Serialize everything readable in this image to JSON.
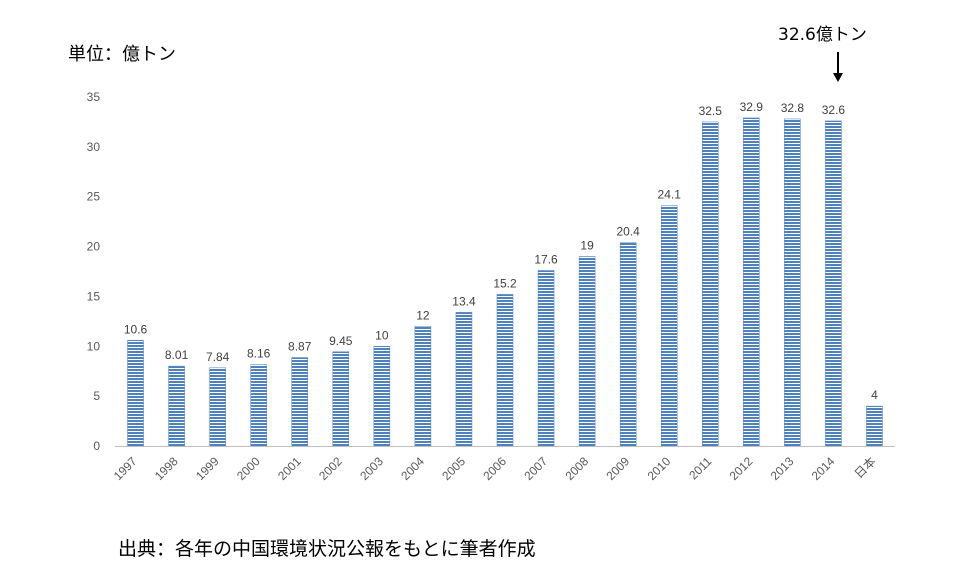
{
  "header": {
    "unit_label": "単位：億トン"
  },
  "annotation": {
    "label": "32.6億トン"
  },
  "footer": {
    "source_note": "出典：各年の中国環境状況公報をもとに筆者作成"
  },
  "chart_data": {
    "type": "bar",
    "categories": [
      "1997",
      "1998",
      "1999",
      "2000",
      "2001",
      "2002",
      "2003",
      "2004",
      "2005",
      "2006",
      "2007",
      "2008",
      "2009",
      "2010",
      "2011",
      "2012",
      "2013",
      "2014",
      "日本"
    ],
    "values": [
      10.6,
      8.01,
      7.84,
      8.16,
      8.87,
      9.45,
      10,
      12,
      13.4,
      15.2,
      17.6,
      19,
      20.4,
      24.1,
      32.5,
      32.9,
      32.8,
      32.6,
      4
    ],
    "data_labels": [
      "10.6",
      "8.01",
      "7.84",
      "8.16",
      "8.87",
      "9.45",
      "10",
      "12",
      "13.4",
      "15.2",
      "17.6",
      "19",
      "20.4",
      "24.1",
      "32.5",
      "32.9",
      "32.8",
      "32.6",
      "4"
    ],
    "yticks": [
      0,
      5,
      10,
      15,
      20,
      25,
      30,
      35
    ],
    "ylim": [
      0,
      35
    ],
    "ylabel": "単位：億トン",
    "grid": false,
    "bar_color": "#4F81BD",
    "bar_stripe_color": "#FFFFFF"
  }
}
